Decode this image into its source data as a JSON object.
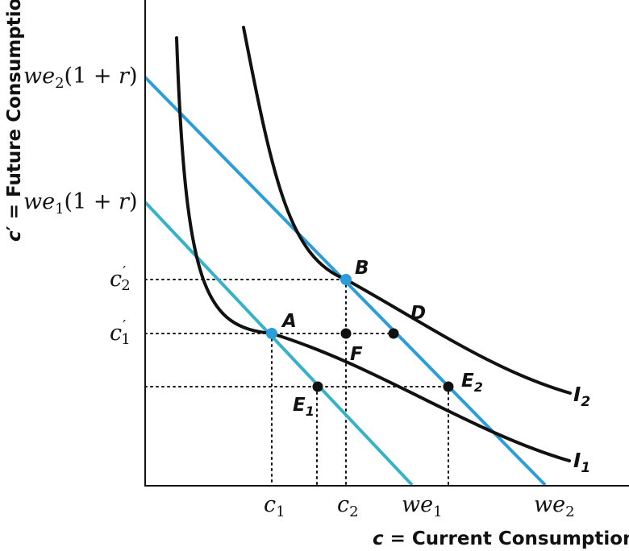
{
  "diagram": {
    "axes": {
      "x_title": "c = Current Consumption",
      "y_title": "c′ = Future Consumption"
    },
    "y_ticks": {
      "we2_1r": "we2(1 + r)",
      "we1_1r": "we1(1 + r)",
      "c2p": "c′2",
      "c1p": "c′1"
    },
    "x_ticks": {
      "c1": "c1",
      "c2": "c2",
      "we1": "we1",
      "we2": "we2"
    },
    "points": {
      "A": "A",
      "B": "B",
      "D": "D",
      "F": "F",
      "E1": "E1",
      "E2": "E2"
    },
    "curves": {
      "I1": "I1",
      "I2": "I2"
    },
    "colors": {
      "axis": "#111111",
      "indifference": "#111111",
      "budget_high": "#2b9ed9",
      "budget_low": "#36b2c8",
      "point_tangent": "#2b9ed9",
      "point_other": "#111111"
    }
  }
}
